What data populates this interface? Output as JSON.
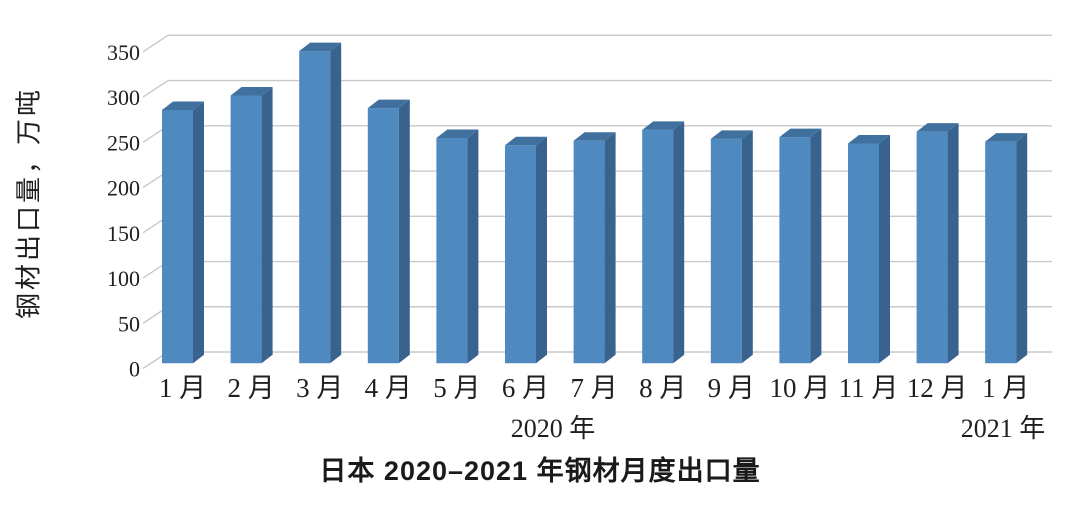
{
  "chart_data": {
    "type": "bar",
    "style": "3d-column",
    "title": "日本 2020–2021 年钢材月度出口量",
    "ylabel": "钢材出口量，万吨",
    "categories": [
      "1 月",
      "2 月",
      "3 月",
      "4 月",
      "5 月",
      "6 月",
      "7 月",
      "8 月",
      "9 月",
      "10 月",
      "11 月",
      "12 月",
      "1 月"
    ],
    "values": [
      280,
      296,
      345,
      282,
      249,
      241,
      246,
      258,
      248,
      250,
      243,
      256,
      245
    ],
    "year_groups": [
      {
        "label": "2020 年",
        "covers_categories": "1 月 – 12 月"
      },
      {
        "label": "2021 年",
        "covers_categories": "1 月"
      }
    ],
    "yticks": [
      0,
      50,
      100,
      150,
      200,
      250,
      300,
      350
    ],
    "ylim": [
      0,
      350
    ],
    "grid": true,
    "legend": "none",
    "colors": {
      "bar_front": "#4e89c0",
      "bar_side": "#38638f",
      "bar_top": "#40719e",
      "gridline": "#c9c9c9",
      "text": "#1f1f1f",
      "background": "#ffffff"
    }
  }
}
